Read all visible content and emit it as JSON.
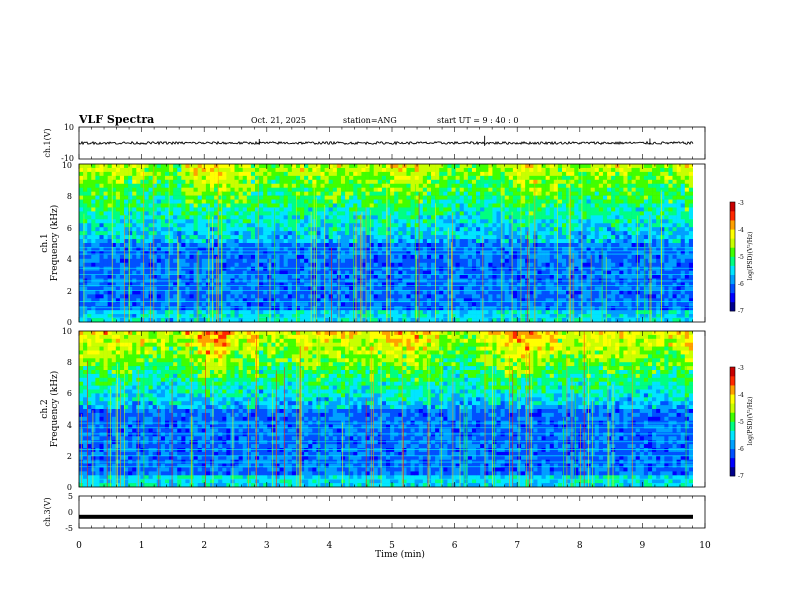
{
  "header": {
    "title": "VLF Spectra",
    "date": "Oct. 21, 2025",
    "station": "station=ANG",
    "start_ut": "start UT =  9 : 40 : 0"
  },
  "chart_data": [
    {
      "id": "ch1-waveform",
      "type": "line",
      "ylabel": "ch.1(V)",
      "ylim": [
        -10,
        10
      ],
      "yticks": [
        "10",
        "-10"
      ],
      "xlim": [
        0,
        10
      ],
      "baseline": 0,
      "impulses": [
        {
          "t": 2.88,
          "v": 2.5
        },
        {
          "t": 6.48,
          "v": 4.5
        },
        {
          "t": 9.12,
          "v": 2.8
        }
      ]
    },
    {
      "id": "ch1-spectrogram",
      "type": "heatmap",
      "ylabel": "ch.1\nFrequency (kHz)",
      "ylim": [
        0,
        10
      ],
      "yticks": [
        "0",
        "2",
        "4",
        "6",
        "8",
        "10"
      ],
      "xlim": [
        0,
        10
      ],
      "colorbar": {
        "label": "log(PSD)(V²/Hz)",
        "range": [
          -7,
          -3
        ],
        "ticks": [
          "-3",
          "-4",
          "-5",
          "-6",
          "-7"
        ]
      },
      "bright_lines_khz": [
        0.3,
        0.9,
        1.3,
        2.0,
        2.3,
        2.6,
        3.0,
        3.4,
        4.3,
        4.5,
        4.7
      ]
    },
    {
      "id": "ch2-spectrogram",
      "type": "heatmap",
      "ylabel": "ch.2\nFrequency (kHz)",
      "ylim": [
        0,
        10
      ],
      "yticks": [
        "0",
        "2",
        "4",
        "6",
        "8",
        "10"
      ],
      "xlim": [
        0,
        10
      ],
      "colorbar": {
        "label": "log(PSD)(V²/Hz)",
        "range": [
          -7,
          -3
        ],
        "ticks": [
          "-3",
          "-4",
          "-5",
          "-6",
          "-7"
        ]
      },
      "bright_lines_khz": [
        0.5,
        1.3,
        1.6,
        2.0,
        2.4,
        2.9,
        3.4,
        3.8,
        4.1
      ]
    },
    {
      "id": "ch3-waveform",
      "type": "line",
      "ylabel": "ch.3(V)",
      "ylim": [
        -5,
        5
      ],
      "yticks": [
        "5",
        "0",
        "-5"
      ],
      "xlim": [
        0,
        10
      ],
      "baseline": -1.5
    }
  ],
  "x_axis": {
    "label": "Time (min)",
    "ticks": [
      "0",
      "1",
      "2",
      "3",
      "4",
      "5",
      "6",
      "7",
      "8",
      "9",
      "10"
    ]
  },
  "colors": {
    "scale": [
      "#00008c",
      "#0000ff",
      "#0050ff",
      "#00a0ff",
      "#00e6ff",
      "#00ff80",
      "#40ff00",
      "#c8ff00",
      "#ffff00",
      "#ffa000",
      "#ff2800",
      "#c80000"
    ]
  }
}
